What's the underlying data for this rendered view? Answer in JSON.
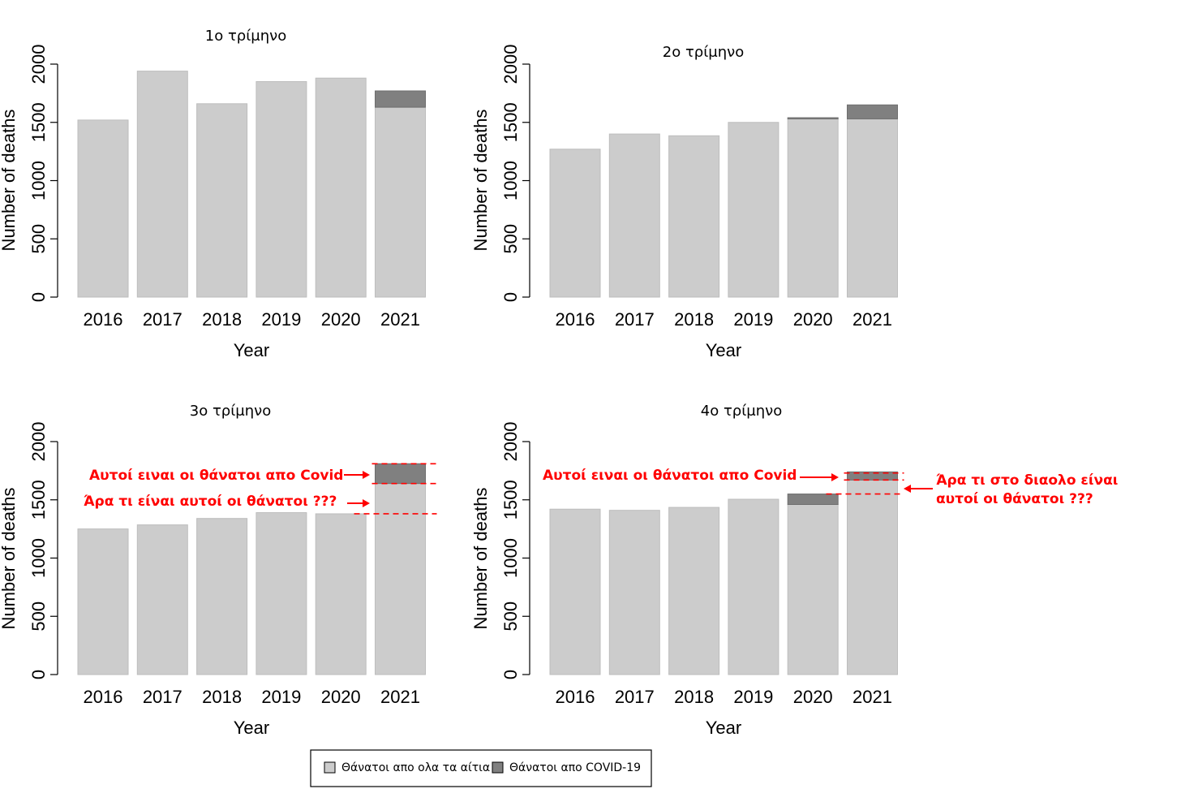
{
  "colors": {
    "all_causes": "#cccccc",
    "covid": "#808080",
    "bar_border": "#bdbdbd",
    "annotation": "#ff0000",
    "axis": "#000000"
  },
  "chart_data": [
    {
      "type": "bar",
      "stacked": true,
      "title": "1ο τρίμηνο",
      "xlabel": "Year",
      "ylabel": "Number of deaths",
      "ylim": [
        0,
        2000
      ],
      "yticks": [
        0,
        500,
        1000,
        1500,
        2000
      ],
      "categories": [
        "2016",
        "2017",
        "2018",
        "2019",
        "2020",
        "2021"
      ],
      "series": [
        {
          "name": "Θάνατοι απο ολα τα αίτια",
          "values": [
            1520,
            1940,
            1660,
            1850,
            1880,
            1630
          ]
        },
        {
          "name": "Θάνατοι απο COVID-19",
          "values": [
            0,
            0,
            0,
            0,
            0,
            140
          ]
        }
      ],
      "annotations": []
    },
    {
      "type": "bar",
      "stacked": true,
      "title": "2ο τρίμηνο",
      "xlabel": "Year",
      "ylabel": "Number of deaths",
      "ylim": [
        0,
        2000
      ],
      "yticks": [
        0,
        500,
        1000,
        1500,
        2000
      ],
      "categories": [
        "2016",
        "2017",
        "2018",
        "2019",
        "2020",
        "2021"
      ],
      "series": [
        {
          "name": "Θάνατοι απο ολα τα αίτια",
          "values": [
            1270,
            1400,
            1385,
            1500,
            1530,
            1530
          ]
        },
        {
          "name": "Θάνατοι απο COVID-19",
          "values": [
            0,
            0,
            0,
            0,
            10,
            120
          ]
        }
      ],
      "annotations": []
    },
    {
      "type": "bar",
      "stacked": true,
      "title": "3ο τρίμηνο",
      "xlabel": "Year",
      "ylabel": "Number of deaths",
      "ylim": [
        0,
        2000
      ],
      "yticks": [
        0,
        500,
        1000,
        1500,
        2000
      ],
      "categories": [
        "2016",
        "2017",
        "2018",
        "2019",
        "2020",
        "2021"
      ],
      "series": [
        {
          "name": "Θάνατοι απο ολα τα αίτια",
          "values": [
            1250,
            1285,
            1340,
            1390,
            1380,
            1640
          ]
        },
        {
          "name": "Θάνατοι απο COVID-19",
          "values": [
            0,
            0,
            0,
            0,
            0,
            170
          ]
        }
      ],
      "annotations": [
        {
          "text": "Αυτοί ειναι οι θάνατοι απο Covid",
          "lines": [
            1810,
            1640
          ]
        },
        {
          "text": "Άρα τι είναι αυτοί οι θάνατοι ???",
          "lines": [
            1380
          ]
        }
      ]
    },
    {
      "type": "bar",
      "stacked": true,
      "title": "4ο τρίμηνο",
      "xlabel": "Year",
      "ylabel": "Number of deaths",
      "ylim": [
        0,
        2000
      ],
      "yticks": [
        0,
        500,
        1000,
        1500,
        2000
      ],
      "categories": [
        "2016",
        "2017",
        "2018",
        "2019",
        "2020",
        "2021"
      ],
      "series": [
        {
          "name": "Θάνατοι απο ολα τα αίτια",
          "values": [
            1420,
            1410,
            1435,
            1505,
            1460,
            1670
          ]
        },
        {
          "name": "Θάνατοι απο COVID-19",
          "values": [
            0,
            0,
            0,
            0,
            90,
            70
          ]
        }
      ],
      "annotations": [
        {
          "text": "Αυτοί ειναι οι θάνατοι απο Covid",
          "lines": [
            1730,
            1670
          ]
        },
        {
          "text": "Άρα τι στο διαολο είναι αυτοί οι θάνατοι ???",
          "lines": [
            1550
          ]
        }
      ]
    }
  ],
  "legend": {
    "items": [
      {
        "label": "Θάνατοι απο ολα τα αίτια",
        "color": "#cccccc"
      },
      {
        "label": "Θάνατοι απο COVID-19",
        "color": "#808080"
      }
    ]
  }
}
